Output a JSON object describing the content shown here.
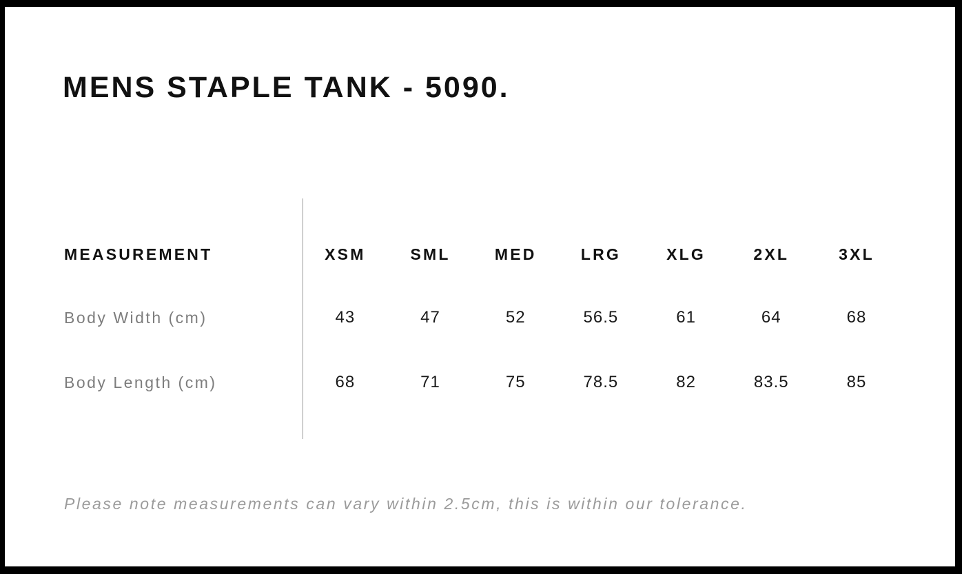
{
  "page": {
    "title": "MENS STAPLE TANK - 5090.",
    "note": "Please note measurements can vary within 2.5cm, this is within our tolerance."
  },
  "size_table": {
    "measurement_header": "MEASUREMENT",
    "size_headers": [
      "XSM",
      "SML",
      "MED",
      "LRG",
      "XLG",
      "2XL",
      "3XL"
    ],
    "rows": [
      {
        "label": "Body Width (cm)",
        "values": [
          "43",
          "47",
          "52",
          "56.5",
          "61",
          "64",
          "68"
        ]
      },
      {
        "label": "Body Length (cm)",
        "values": [
          "68",
          "71",
          "75",
          "78.5",
          "82",
          "83.5",
          "85"
        ]
      }
    ]
  },
  "chart_data": {
    "type": "table",
    "title": "MENS STAPLE TANK - 5090.",
    "columns": [
      "MEASUREMENT",
      "XSM",
      "SML",
      "MED",
      "LRG",
      "XLG",
      "2XL",
      "3XL"
    ],
    "rows": [
      [
        "Body Width (cm)",
        43,
        47,
        52,
        56.5,
        61,
        64,
        68
      ],
      [
        "Body Length (cm)",
        68,
        71,
        75,
        78.5,
        82,
        83.5,
        85
      ]
    ],
    "footnote": "Please note measurements can vary within 2.5cm, this is within our tolerance."
  },
  "colors": {
    "frame": "#000000",
    "heading_text": "#111111",
    "value_text": "#1a1a1a",
    "label_text": "#7d7d7d",
    "note_text": "#9b9b9b",
    "divider": "#999999",
    "background": "#ffffff"
  }
}
